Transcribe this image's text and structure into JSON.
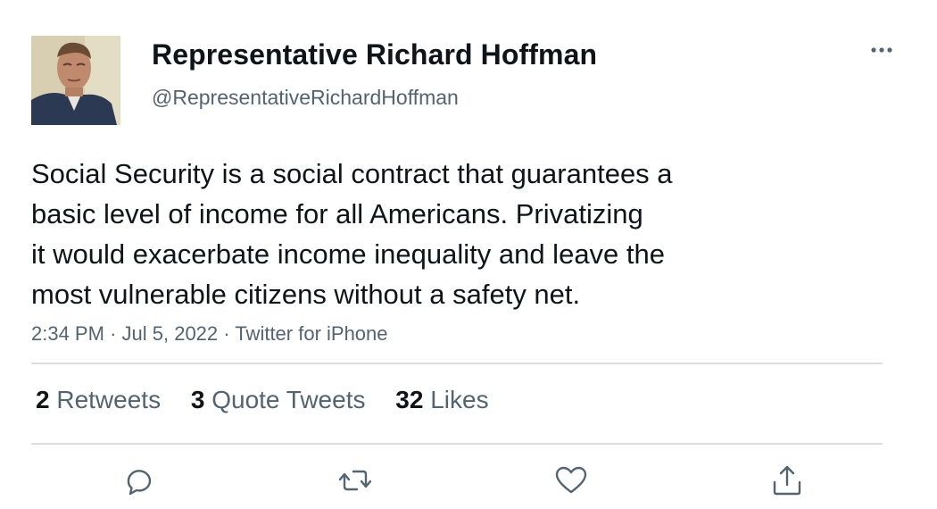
{
  "author": {
    "display_name": "Representative Richard Hoffman",
    "handle": "@RepresentativeRichardHoffman"
  },
  "tweet": {
    "lines": [
      "Social Security is a social contract that guarantees a",
      "basic level of income for all Americans. Privatizing",
      "it would exacerbate income inequality and leave the",
      "most vulnerable citizens without a safety net."
    ],
    "time": "2:34 PM",
    "date": "Jul 5, 2022",
    "source": "Twitter for iPhone",
    "separator": "·"
  },
  "stats": {
    "retweets": {
      "count": "2",
      "label": "Retweets"
    },
    "quotes": {
      "count": "3",
      "label": "Quote Tweets"
    },
    "likes": {
      "count": "32",
      "label": "Likes"
    }
  },
  "actions": {
    "reply_icon": "reply-icon",
    "retweet_icon": "retweet-icon",
    "like_icon": "heart-icon",
    "share_icon": "share-icon"
  },
  "colors": {
    "text": "#0f1419",
    "secondary": "#536471",
    "divider": "#d9dde0",
    "icon": "#536471"
  }
}
